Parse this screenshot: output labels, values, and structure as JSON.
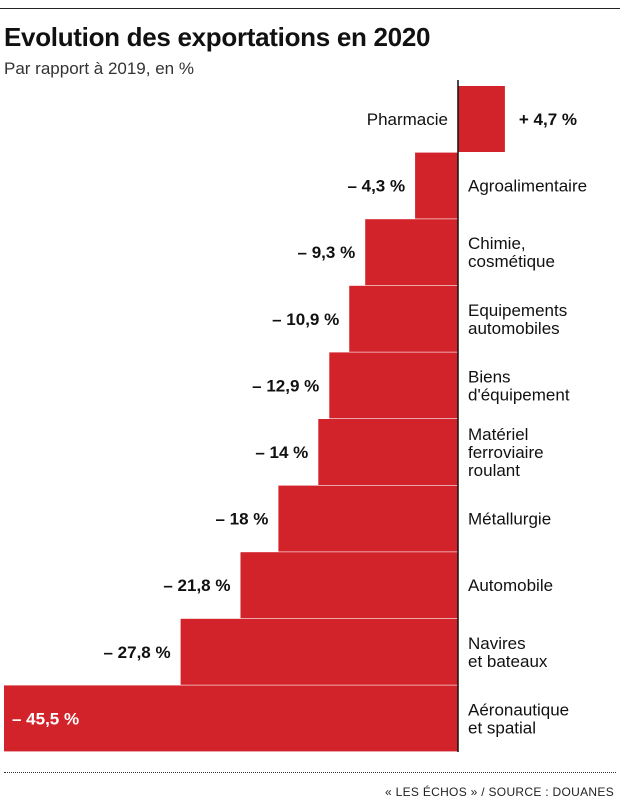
{
  "title": "Evolution des exportations en 2020",
  "subtitle": "Par rapport à 2019, en %",
  "source": "« LES ÉCHOS » / SOURCE : DOUANES",
  "colors": {
    "bar": "#d2232a",
    "text": "#111111"
  },
  "chart_data": {
    "type": "bar",
    "orientation": "horizontal",
    "categories": [
      [
        "Pharmacie"
      ],
      [
        "Agroalimentaire"
      ],
      [
        "Chimie,",
        "cosmétique"
      ],
      [
        "Equipements",
        "automobiles"
      ],
      [
        "Biens",
        "d'équipement"
      ],
      [
        "Matériel",
        "ferroviaire",
        "roulant"
      ],
      [
        "Métallurgie"
      ],
      [
        "Automobile"
      ],
      [
        "Navires",
        "et bateaux"
      ],
      [
        "Aéronautique",
        "et spatial"
      ]
    ],
    "values": [
      4.7,
      -4.3,
      -9.3,
      -10.9,
      -12.9,
      -14,
      -18,
      -21.8,
      -27.8,
      -45.5
    ],
    "value_labels": [
      "+ 4,7 %",
      "– 4,3 %",
      "– 9,3 %",
      "– 10,9 %",
      "– 12,9 %",
      "– 14 %",
      "– 18 %",
      "– 21,8 %",
      "– 27,8 %",
      "– 45,5 %"
    ],
    "xlim": [
      -45.5,
      4.7
    ],
    "grid": false
  }
}
